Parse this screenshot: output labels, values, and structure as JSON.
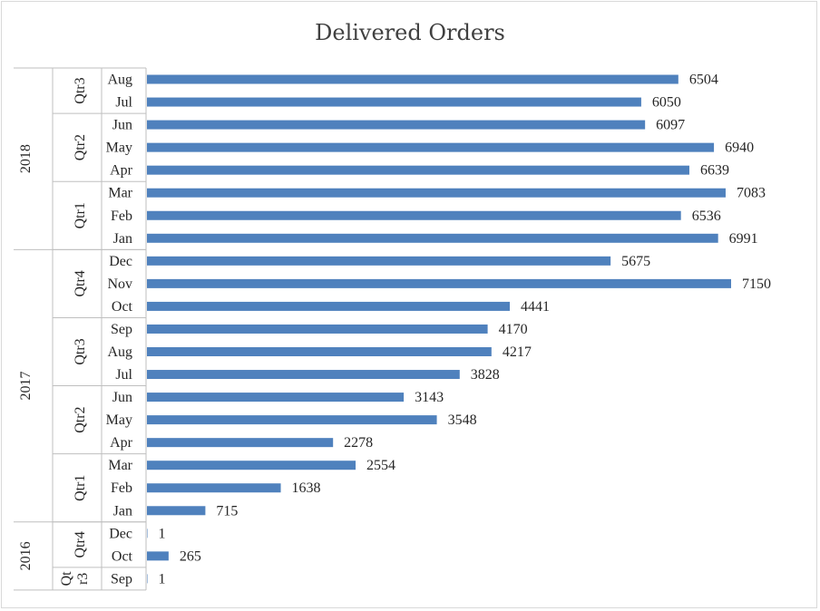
{
  "chart_data": {
    "type": "bar",
    "orientation": "horizontal",
    "title": "Delivered Orders",
    "xlabel": "",
    "ylabel": "",
    "xlim": [
      0,
      8000
    ],
    "grid": false,
    "legend": "none",
    "bar_color": "#4f81bd",
    "categories": [
      {
        "year": "2018",
        "quarter": "Qtr3",
        "month": "Aug",
        "value": 6504
      },
      {
        "year": "2018",
        "quarter": "Qtr3",
        "month": "Jul",
        "value": 6050
      },
      {
        "year": "2018",
        "quarter": "Qtr2",
        "month": "Jun",
        "value": 6097
      },
      {
        "year": "2018",
        "quarter": "Qtr2",
        "month": "May",
        "value": 6940
      },
      {
        "year": "2018",
        "quarter": "Qtr2",
        "month": "Apr",
        "value": 6639
      },
      {
        "year": "2018",
        "quarter": "Qtr1",
        "month": "Mar",
        "value": 7083
      },
      {
        "year": "2018",
        "quarter": "Qtr1",
        "month": "Feb",
        "value": 6536
      },
      {
        "year": "2018",
        "quarter": "Qtr1",
        "month": "Jan",
        "value": 6991
      },
      {
        "year": "2017",
        "quarter": "Qtr4",
        "month": "Dec",
        "value": 5675
      },
      {
        "year": "2017",
        "quarter": "Qtr4",
        "month": "Nov",
        "value": 7150
      },
      {
        "year": "2017",
        "quarter": "Qtr4",
        "month": "Oct",
        "value": 4441
      },
      {
        "year": "2017",
        "quarter": "Qtr3",
        "month": "Sep",
        "value": 4170
      },
      {
        "year": "2017",
        "quarter": "Qtr3",
        "month": "Aug",
        "value": 4217
      },
      {
        "year": "2017",
        "quarter": "Qtr3",
        "month": "Jul",
        "value": 3828
      },
      {
        "year": "2017",
        "quarter": "Qtr2",
        "month": "Jun",
        "value": 3143
      },
      {
        "year": "2017",
        "quarter": "Qtr2",
        "month": "May",
        "value": 3548
      },
      {
        "year": "2017",
        "quarter": "Qtr2",
        "month": "Apr",
        "value": 2278
      },
      {
        "year": "2017",
        "quarter": "Qtr1",
        "month": "Mar",
        "value": 2554
      },
      {
        "year": "2017",
        "quarter": "Qtr1",
        "month": "Feb",
        "value": 1638
      },
      {
        "year": "2017",
        "quarter": "Qtr1",
        "month": "Jan",
        "value": 715
      },
      {
        "year": "2016",
        "quarter": "Qtr4",
        "month": "Dec",
        "value": 1
      },
      {
        "year": "2016",
        "quarter": "Qtr4",
        "month": "Oct",
        "value": 265
      },
      {
        "year": "2016",
        "quarter": "Qt r3",
        "month": "Sep",
        "value": 1
      }
    ]
  }
}
